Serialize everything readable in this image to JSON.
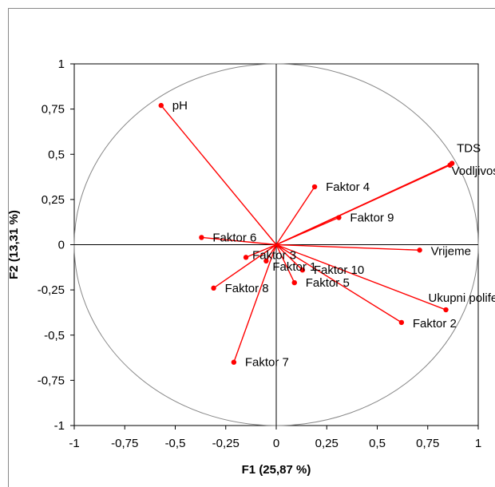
{
  "chart_data": {
    "type": "scatter",
    "subtype": "pca-correlation-circle",
    "xlabel": "F1 (25,87 %)",
    "ylabel": "F2 (13,31 %)",
    "xlim": [
      -1,
      1
    ],
    "ylim": [
      -1,
      1
    ],
    "x_ticks": [
      "-1",
      "-0,75",
      "-0,5",
      "-0,25",
      "0",
      "0,25",
      "0,5",
      "0,75",
      "1"
    ],
    "y_ticks": [
      "1",
      "0,75",
      "0,5",
      "0,25",
      "0",
      "-0,25",
      "-0,5",
      "-0,75",
      "-1"
    ],
    "grid": false,
    "unit_circle": true,
    "series_color": "#ff0000",
    "points": [
      {
        "label": "pH",
        "x": -0.57,
        "y": 0.77
      },
      {
        "label": "TDS",
        "x": 0.87,
        "y": 0.45
      },
      {
        "label": "Vodljivost",
        "x": 0.86,
        "y": 0.44
      },
      {
        "label": "Faktor 4",
        "x": 0.19,
        "y": 0.32
      },
      {
        "label": "Faktor 9",
        "x": 0.31,
        "y": 0.15
      },
      {
        "label": "Faktor 6",
        "x": -0.37,
        "y": 0.04
      },
      {
        "label": "Vrijeme",
        "x": 0.71,
        "y": -0.03
      },
      {
        "label": "Faktor 3",
        "x": -0.15,
        "y": -0.07
      },
      {
        "label": "Faktor 1",
        "x": -0.05,
        "y": -0.09
      },
      {
        "label": "Faktor 10",
        "x": 0.13,
        "y": -0.14
      },
      {
        "label": "Faktor 5",
        "x": 0.09,
        "y": -0.21
      },
      {
        "label": "Faktor 8",
        "x": -0.31,
        "y": -0.24
      },
      {
        "label": "Ukupni polifenoli",
        "x": 0.84,
        "y": -0.36
      },
      {
        "label": "Faktor 2",
        "x": 0.62,
        "y": -0.43
      },
      {
        "label": "Faktor 7",
        "x": -0.21,
        "y": -0.65
      }
    ]
  }
}
